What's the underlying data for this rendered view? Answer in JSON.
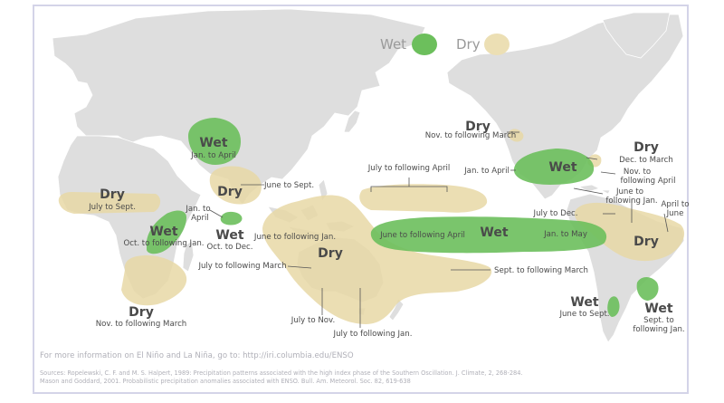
{
  "legend": {
    "wet_label": "Wet",
    "dry_label": "Dry",
    "wet_color": "#5cb85c",
    "dry_color": "#ecdfb4"
  },
  "colors": {
    "land": "#dedede",
    "border": "#ffffff",
    "wet_region": "#6cbf5c",
    "dry_region": "#e8d8a6",
    "text": "#4a4a4a"
  },
  "regions": {
    "wet_india": {
      "title": "Wet",
      "season": "Jan. to April"
    },
    "dry_arabia": {
      "title": "Dry",
      "season": "June to Sept."
    },
    "dry_w_africa": {
      "title": "Dry",
      "season": "July to Sept."
    },
    "wet_e_africa": {
      "title": "Wet",
      "season": "Oct. to following Jan."
    },
    "wet_s_india": {
      "title": "Wet",
      "season": "Oct. to Dec."
    },
    "dry_s_africa": {
      "title": "Dry",
      "season": "Nov. to following March"
    },
    "dry_australia": {
      "title": "Dry"
    },
    "wet_pacific": {
      "title": "Wet"
    },
    "dry_nw_us": {
      "title": "Dry",
      "season": "Nov. to following March"
    },
    "wet_gulf": {
      "title": "Wet"
    },
    "dry_se_us": {
      "title": "Dry",
      "season": "Dec. to March"
    },
    "dry_s_america": {
      "title": "Dry"
    },
    "wet_chile": {
      "title": "Wet",
      "season": "June to Sept."
    },
    "wet_se_s_america": {
      "title": "Wet",
      "season": "Sept. to following Jan."
    }
  },
  "annotations": {
    "jan_april_e_africa": "Jan. to",
    "jan_april_e_africa_2": "April",
    "june_jan_indo": "June to following Jan.",
    "july_march": "July to following March",
    "july_april": "July to following April",
    "july_nov": "July to Nov.",
    "july_jan": "July to following Jan.",
    "sept_march": "Sept. to following March",
    "june_april_pacific": "June to following April",
    "jan_may": "Jan. to May",
    "jan_april_gulf": "Jan. to April",
    "nov_april_1": "Nov. to",
    "nov_april_2": "following April",
    "june_jan_1": "June to",
    "june_jan_2": "following Jan.",
    "july_dec": "July to Dec.",
    "april_june_1": "April to",
    "april_june_2": "June"
  },
  "footer": {
    "info": "For more information on El Niño and La Niña, go to: http://iri.columbia.edu/ENSO",
    "source_1": "Sources:  Ropelewski, C. F. and M. S. Halpert, 1989: Precipitation patterns associated with the high index phase of the Southern Oscillation. J. Climate, 2, 268-284.",
    "source_2": "Mason and Goddard, 2001. Probabilistic precipitation anomalies associated with ENSO.  Bull. Am. Meteorol. Soc. 82, 619-638"
  }
}
